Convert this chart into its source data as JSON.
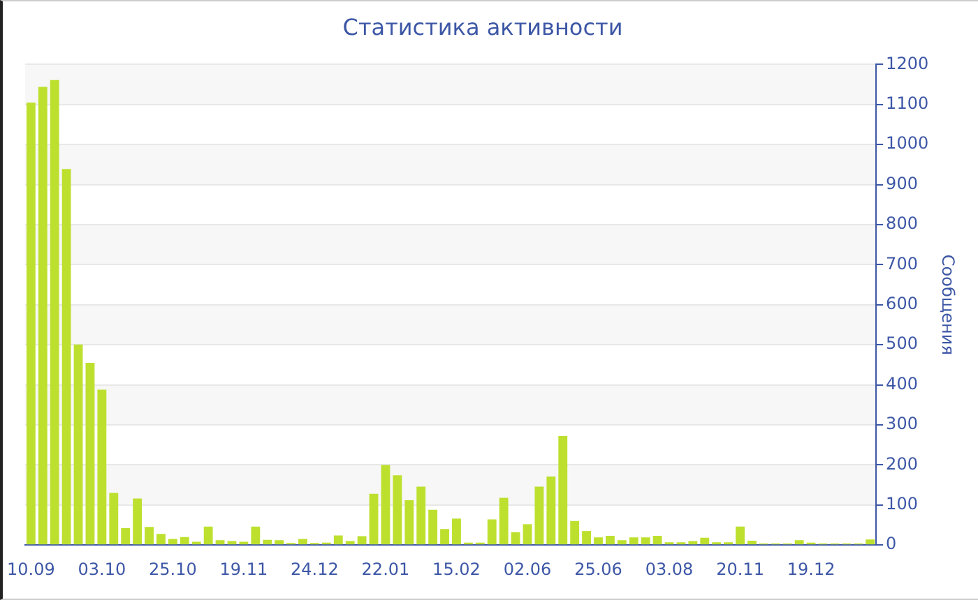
{
  "chart_data": {
    "type": "bar",
    "title": "Статистика активности",
    "ylabel": "Сообщения",
    "categories": [
      "10.09",
      null,
      null,
      null,
      null,
      null,
      "03.10",
      null,
      null,
      null,
      null,
      null,
      "25.10",
      null,
      null,
      null,
      null,
      null,
      "19.11",
      null,
      null,
      null,
      null,
      null,
      "24.12",
      null,
      null,
      null,
      null,
      null,
      "22.01",
      null,
      null,
      null,
      null,
      null,
      "15.02",
      null,
      null,
      null,
      null,
      null,
      "02.06",
      null,
      null,
      null,
      null,
      null,
      "25.06",
      null,
      null,
      null,
      null,
      null,
      "03.08",
      null,
      null,
      null,
      null,
      null,
      "20.11",
      null,
      null,
      null,
      null,
      null,
      "19.12",
      null,
      null,
      null,
      null,
      null
    ],
    "values": [
      1105,
      1144,
      1161,
      939,
      501,
      455,
      388,
      130,
      42,
      116,
      45,
      28,
      15,
      20,
      8,
      46,
      12,
      10,
      8,
      46,
      13,
      12,
      5,
      15,
      5,
      6,
      24,
      10,
      22,
      128,
      200,
      174,
      112,
      146,
      88,
      40,
      66,
      6,
      6,
      64,
      118,
      32,
      52,
      146,
      171,
      272,
      60,
      35,
      19,
      23,
      12,
      19,
      19,
      23,
      7,
      7,
      10,
      18,
      7,
      7,
      46,
      11,
      4,
      4,
      4,
      12,
      6,
      4,
      4,
      4,
      4,
      14
    ],
    "color": "#bde02f",
    "ylim": [
      0,
      1200
    ],
    "yticks": [
      0,
      100,
      200,
      300,
      400,
      500,
      600,
      700,
      800,
      900,
      1000,
      1100,
      1200
    ],
    "grid": "y"
  }
}
